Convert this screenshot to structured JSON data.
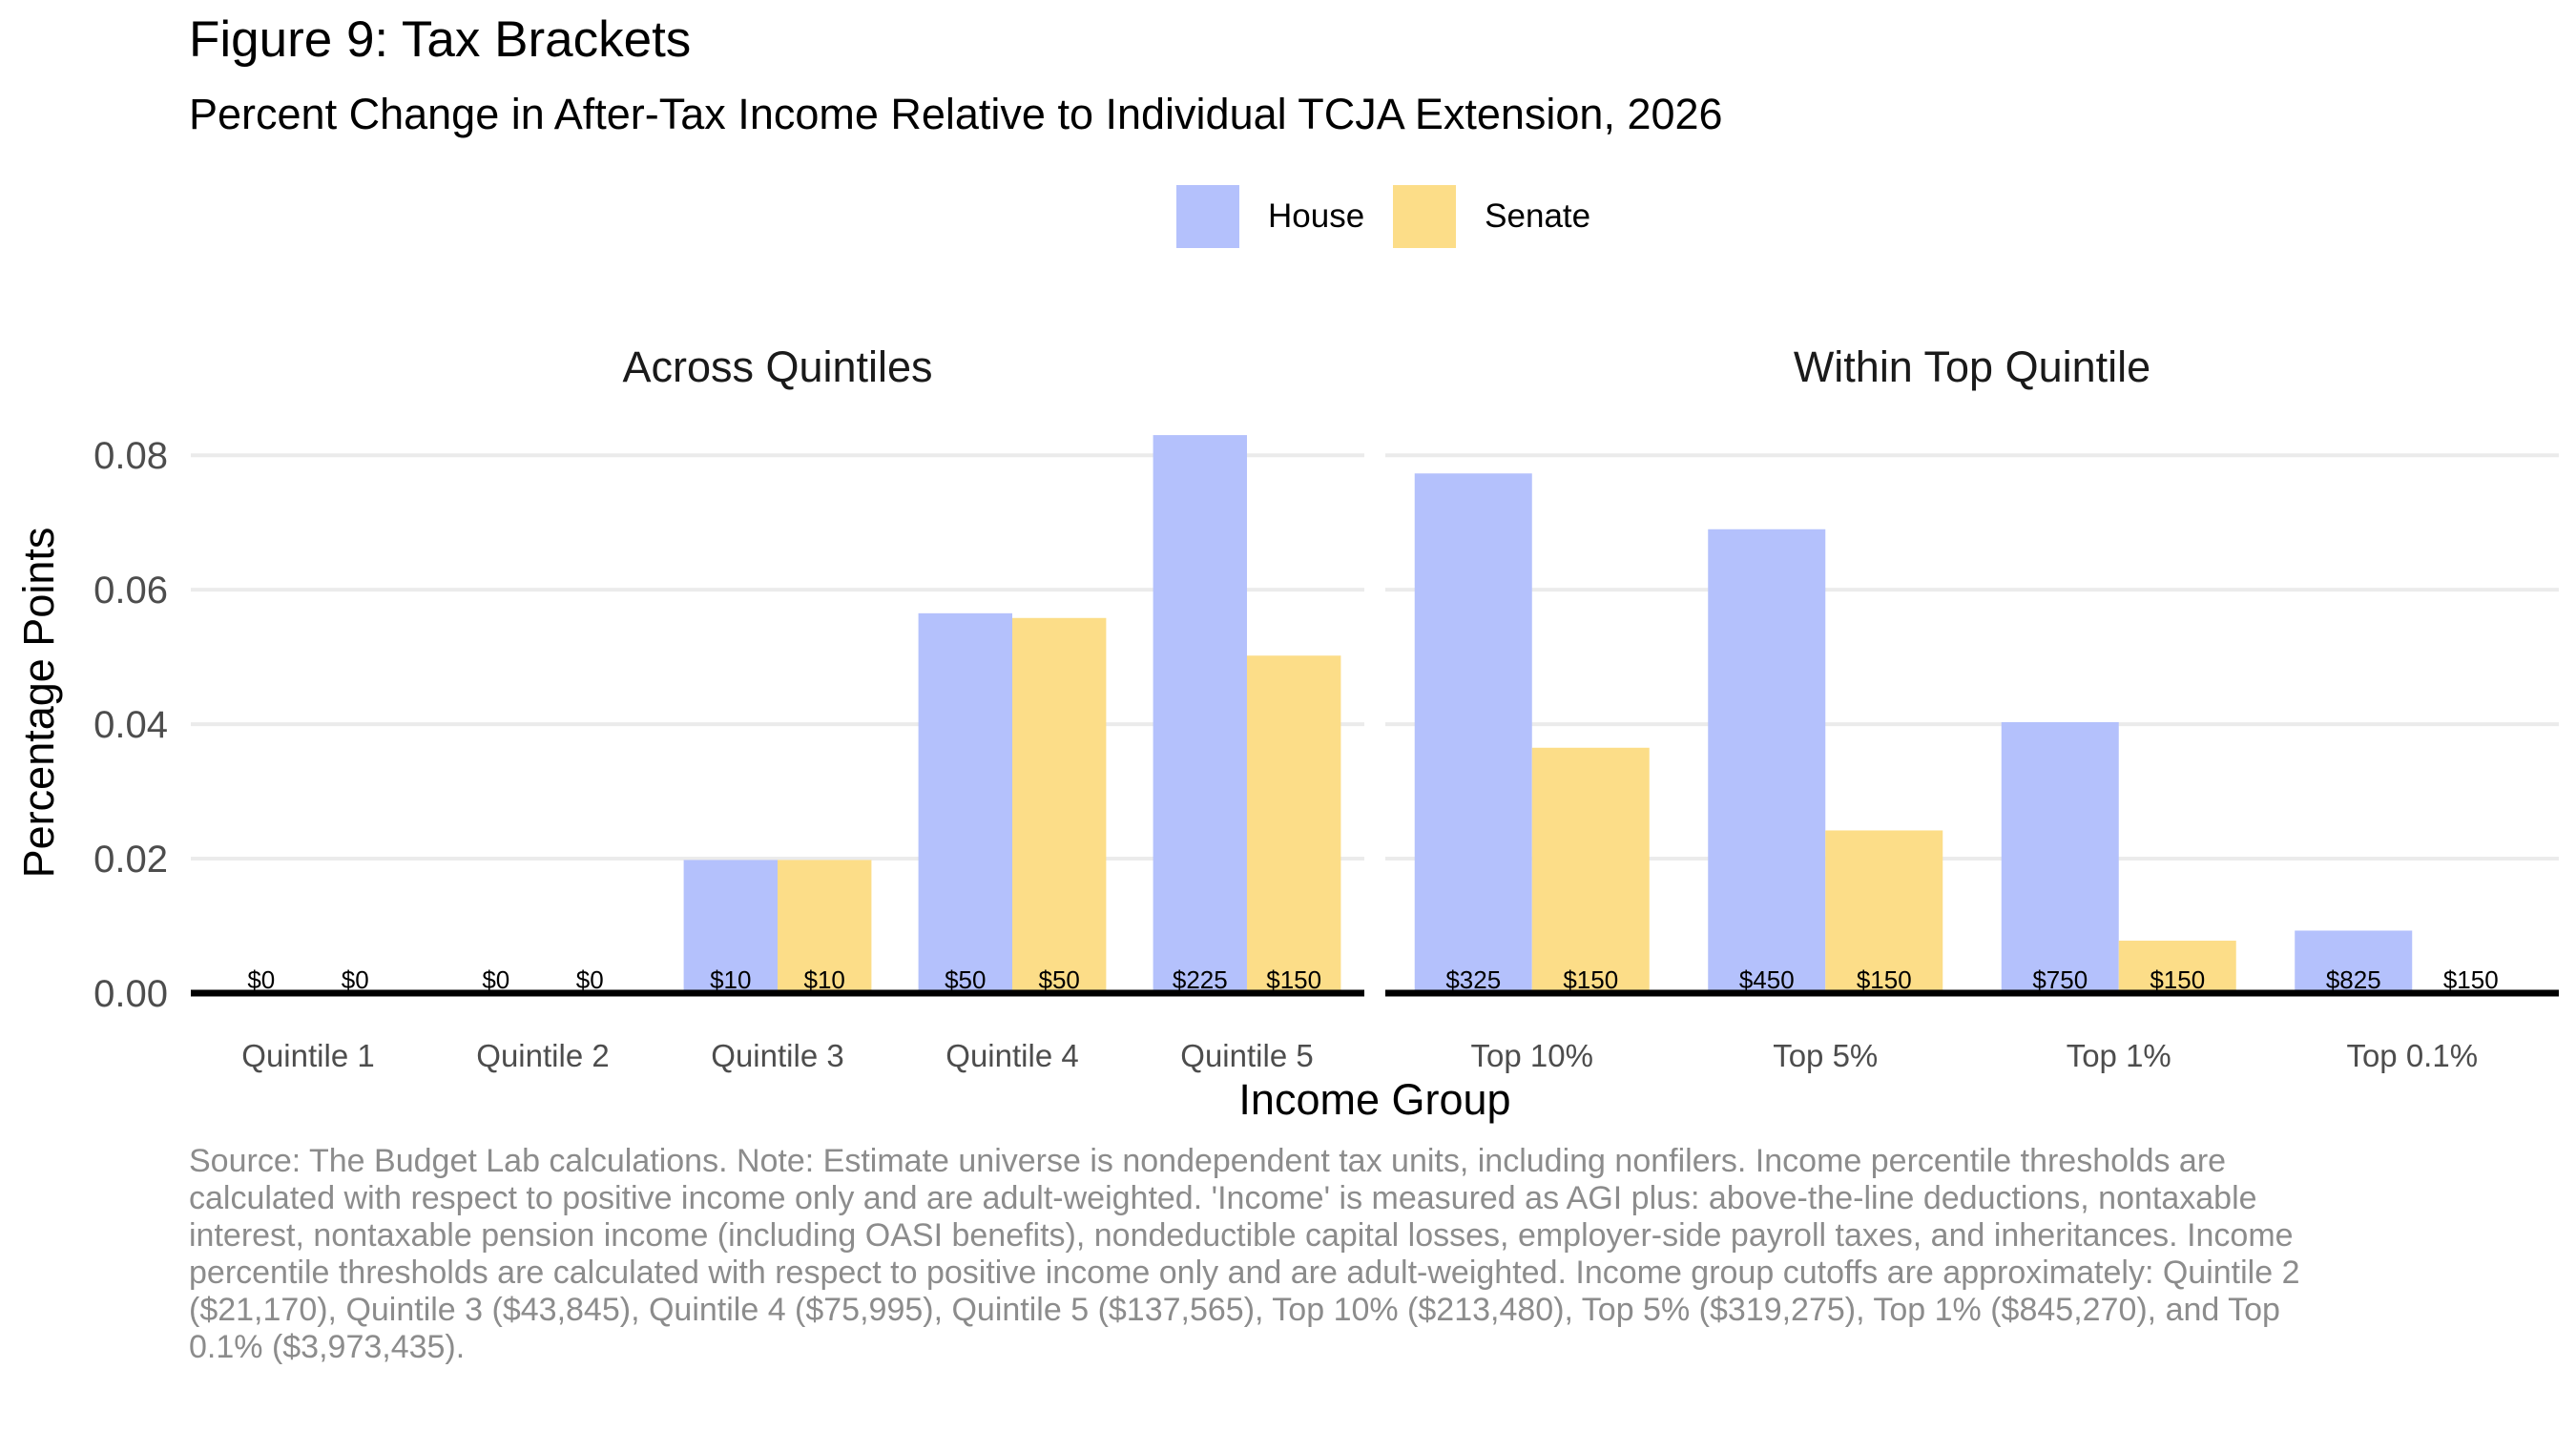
{
  "colors": {
    "house": "#B4C1FC",
    "senate": "#FCDD88",
    "grid": "#EBEBEB",
    "axis": "#000000",
    "tick_text": "#4D4D4D",
    "caption": "#8C8C8C"
  },
  "chart_data": {
    "type": "bar",
    "title": "Figure 9: Tax Brackets",
    "subtitle": "Percent Change in After-Tax Income Relative to Individual TCJA Extension, 2026",
    "xlabel": "Income Group",
    "ylabel": "Percentage Points",
    "ylim": [
      0,
      0.085
    ],
    "yticks": [
      "0.00",
      "0.02",
      "0.04",
      "0.06",
      "0.08"
    ],
    "grid": true,
    "legend_position": "top",
    "legend": [
      "House",
      "Senate"
    ],
    "panels": [
      {
        "title": "Across Quintiles",
        "categories": [
          "Quintile 1",
          "Quintile 2",
          "Quintile 3",
          "Quintile 4",
          "Quintile 5"
        ],
        "series": [
          {
            "name": "House",
            "values": [
              0,
              0,
              0.0198,
              0.0565,
              0.083
            ],
            "labels": [
              "$0",
              "$0",
              "$10",
              "$50",
              "$225"
            ]
          },
          {
            "name": "Senate",
            "values": [
              0,
              0,
              0.0198,
              0.0558,
              0.0502
            ],
            "labels": [
              "$0",
              "$0",
              "$10",
              "$50",
              "$150"
            ]
          }
        ]
      },
      {
        "title": "Within Top Quintile",
        "categories": [
          "Top 10%",
          "Top 5%",
          "Top 1%",
          "Top 0.1%"
        ],
        "series": [
          {
            "name": "House",
            "values": [
              0.0773,
              0.069,
              0.0403,
              0.0093
            ],
            "labels": [
              "$325",
              "$450",
              "$750",
              "$825"
            ]
          },
          {
            "name": "Senate",
            "values": [
              0.0365,
              0.0242,
              0.0078,
              0
            ],
            "labels": [
              "$150",
              "$150",
              "$150",
              "$150"
            ]
          }
        ]
      }
    ]
  },
  "caption": "Source: The Budget Lab calculations. Note: Estimate universe is nondependent tax units, including nonfilers. Income percentile thresholds are calculated with respect to positive income only and are adult-weighted. 'Income' is measured as AGI plus: above-the-line deductions, nontaxable interest, nontaxable pension income (including OASI benefits), nondeductible capital losses, employer-side payroll taxes, and inheritances. Income percentile thresholds are calculated with respect to positive income only and are adult-weighted. Income group cutoffs are approximately: Quintile 2 ($21,170), Quintile 3 ($43,845), Quintile 4 ($75,995), Quintile 5 ($137,565), Top 10% ($213,480), Top 5% ($319,275), Top 1% ($845,270), and Top 0.1% ($3,973,435)."
}
